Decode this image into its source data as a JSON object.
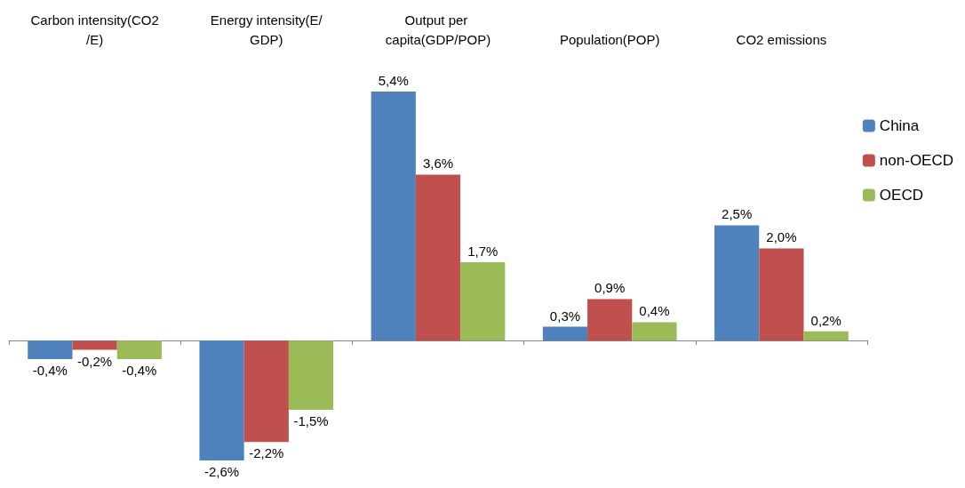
{
  "chart_data": {
    "type": "bar",
    "categories": [
      "Carbon intensity(CO2/E)",
      "Energy intensity(E/GDP)",
      "Output per capita(GDP/POP)",
      "Population(POP)",
      "CO2 emissions"
    ],
    "series": [
      {
        "name": "China",
        "color": "#4f81bd",
        "values": [
          -0.4,
          -2.6,
          5.4,
          0.3,
          2.5
        ],
        "value_labels": [
          "-0,4%",
          "-2,6%",
          "5,4%",
          "0,3%",
          "2,5%"
        ]
      },
      {
        "name": "non-OECD",
        "color": "#c0504d",
        "values": [
          -0.2,
          -2.2,
          3.6,
          0.9,
          2.0
        ],
        "value_labels": [
          "-0,2%",
          "-2,2%",
          "3,6%",
          "0,9%",
          "2,0%"
        ]
      },
      {
        "name": "OECD",
        "color": "#9bbb59",
        "values": [
          -0.4,
          -1.5,
          1.7,
          0.4,
          0.2
        ],
        "value_labels": [
          "-0,4%",
          "-1,5%",
          "1,7%",
          "0,4%",
          "0,2%"
        ]
      }
    ],
    "legend": "right"
  }
}
